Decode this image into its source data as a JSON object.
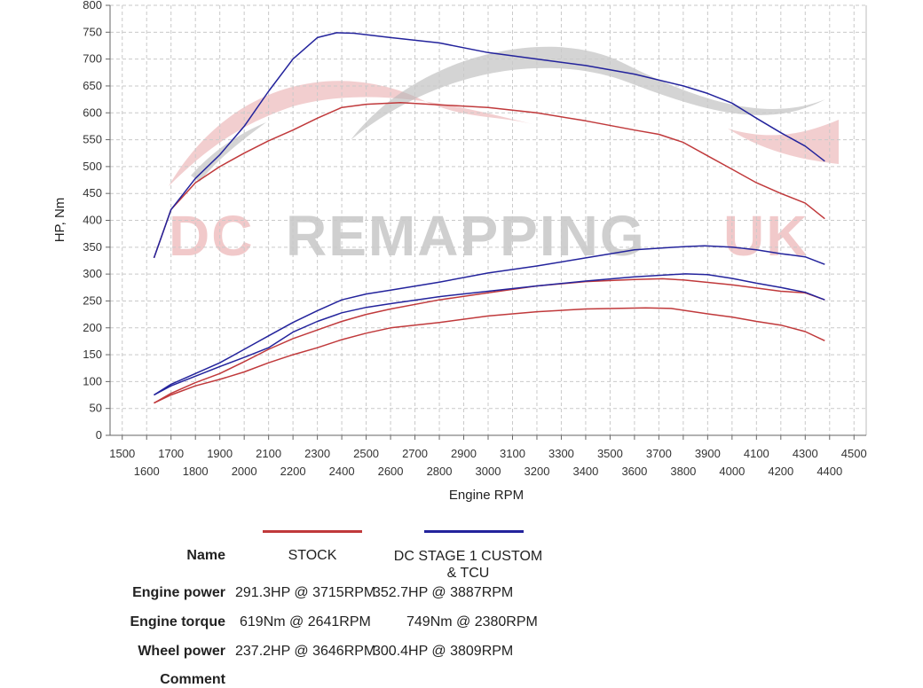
{
  "chart_data": {
    "type": "line",
    "xlabel": "Engine RPM",
    "ylabel": "HP, Nm",
    "xlim": [
      1450,
      4550
    ],
    "ylim": [
      0,
      800
    ],
    "y_ticks": [
      0,
      50,
      100,
      150,
      200,
      250,
      300,
      350,
      400,
      450,
      500,
      550,
      600,
      650,
      700,
      750,
      800
    ],
    "x_ticks_upper": [
      1500,
      1700,
      1900,
      2100,
      2300,
      2500,
      2700,
      2900,
      3100,
      3300,
      3500,
      3700,
      3900,
      4100,
      4300,
      4500
    ],
    "x_ticks_lower": [
      1600,
      1800,
      2000,
      2200,
      2400,
      2600,
      2800,
      3000,
      3200,
      3400,
      3600,
      3800,
      4000,
      4200,
      4400
    ],
    "grid": true,
    "watermark": "DC REMAPPING UK",
    "series": [
      {
        "name": "STOCK",
        "role": "Engine torque",
        "color": "#c0393b",
        "x": [
          1630,
          1700,
          1800,
          1900,
          2000,
          2100,
          2200,
          2300,
          2400,
          2500,
          2641,
          2800,
          3000,
          3200,
          3400,
          3600,
          3700,
          3800,
          3900,
          4000,
          4100,
          4200,
          4300,
          4380
        ],
        "y": [
          330,
          420,
          470,
          500,
          525,
          548,
          568,
          590,
          610,
          616,
          619,
          615,
          610,
          600,
          585,
          568,
          560,
          545,
          520,
          495,
          470,
          450,
          432,
          403
        ]
      },
      {
        "name": "STOCK",
        "role": "Engine power",
        "color": "#c0393b",
        "x": [
          1630,
          1700,
          1800,
          1900,
          2000,
          2100,
          2200,
          2300,
          2400,
          2500,
          2600,
          2800,
          3000,
          3200,
          3400,
          3600,
          3715,
          3800,
          4000,
          4200,
          4300,
          4380
        ],
        "y": [
          60,
          78,
          98,
          115,
          137,
          160,
          180,
          196,
          212,
          225,
          235,
          252,
          265,
          278,
          286,
          290,
          291.3,
          289,
          280,
          268,
          265,
          252
        ]
      },
      {
        "name": "STOCK",
        "role": "Wheel power",
        "color": "#c0393b",
        "x": [
          1630,
          1700,
          1800,
          1900,
          2000,
          2100,
          2200,
          2300,
          2400,
          2500,
          2600,
          2800,
          3000,
          3200,
          3400,
          3646,
          3750,
          3900,
          4000,
          4100,
          4200,
          4300,
          4380
        ],
        "y": [
          60,
          75,
          92,
          104,
          118,
          135,
          150,
          163,
          178,
          190,
          200,
          210,
          222,
          230,
          235,
          237.2,
          236,
          226,
          220,
          212,
          205,
          193,
          176
        ]
      },
      {
        "name": "DC STAGE 1 CUSTOM & TCU",
        "role": "Engine torque",
        "color": "#23239c",
        "x": [
          1630,
          1700,
          1800,
          1900,
          2000,
          2100,
          2200,
          2300,
          2380,
          2450,
          2600,
          2800,
          3000,
          3200,
          3400,
          3600,
          3800,
          3900,
          4000,
          4100,
          4200,
          4300,
          4380
        ],
        "y": [
          330,
          420,
          478,
          522,
          575,
          640,
          700,
          740,
          749,
          748,
          740,
          730,
          712,
          700,
          688,
          672,
          650,
          636,
          618,
          590,
          563,
          538,
          510
        ]
      },
      {
        "name": "DC STAGE 1 CUSTOM & TCU",
        "role": "Engine power",
        "color": "#23239c",
        "x": [
          1630,
          1700,
          1800,
          1900,
          2000,
          2100,
          2200,
          2300,
          2400,
          2500,
          2600,
          2800,
          3000,
          3200,
          3400,
          3600,
          3800,
          3887,
          4000,
          4100,
          4200,
          4300,
          4380
        ],
        "y": [
          75,
          95,
          115,
          135,
          160,
          185,
          210,
          232,
          252,
          263,
          270,
          285,
          302,
          315,
          330,
          345,
          351,
          352.7,
          350,
          345,
          338,
          332,
          318
        ]
      },
      {
        "name": "DC STAGE 1 CUSTOM & TCU",
        "role": "Wheel power",
        "color": "#23239c",
        "x": [
          1630,
          1700,
          1800,
          1900,
          2000,
          2100,
          2200,
          2300,
          2400,
          2500,
          2600,
          2800,
          3000,
          3200,
          3400,
          3600,
          3809,
          3900,
          4000,
          4100,
          4200,
          4300,
          4380
        ],
        "y": [
          75,
          92,
          110,
          128,
          145,
          163,
          192,
          212,
          228,
          238,
          245,
          258,
          268,
          278,
          287,
          295,
          300.4,
          299,
          292,
          283,
          275,
          266,
          252
        ]
      }
    ]
  },
  "legend": {
    "name_label": "Name",
    "engine_power_label": "Engine power",
    "engine_torque_label": "Engine torque",
    "wheel_power_label": "Wheel power",
    "comment_label": "Comment",
    "stock": {
      "name": "STOCK",
      "color": "#c0393b",
      "engine_power": "291.3HP @  3715RPM",
      "engine_torque": "619Nm @ 2641RPM",
      "wheel_power": "237.2HP @  3646RPM"
    },
    "dc": {
      "name_line1": "DC STAGE 1 CUSTOM",
      "name_line2": "& TCU",
      "color": "#23239c",
      "engine_power": "352.7HP @  3887RPM",
      "engine_torque": "749Nm @ 2380RPM",
      "wheel_power": "300.4HP @  3809RPM"
    }
  }
}
